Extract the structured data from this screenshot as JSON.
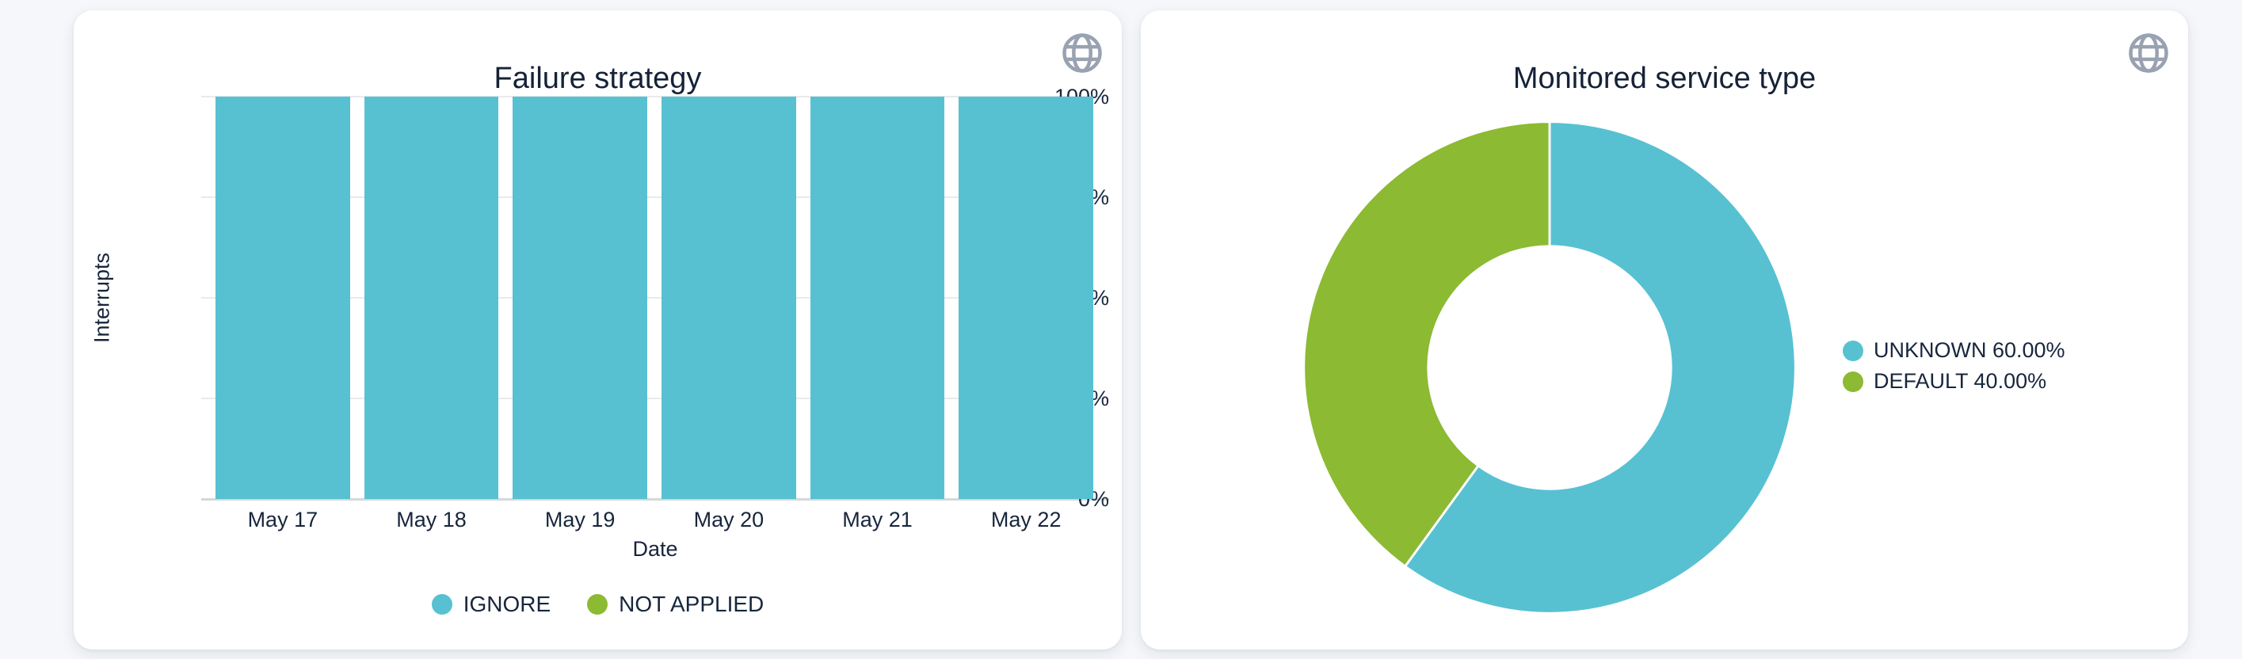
{
  "page": {
    "background_color": "#f5f7fa",
    "card_background_color": "#ffffff",
    "text_color": "#17263c"
  },
  "icons": {
    "card_action": "globe-icon",
    "globe_color": "#99a2b1"
  },
  "chart_data": [
    {
      "type": "bar",
      "title": "Failure strategy",
      "categories": [
        "May 17",
        "May 18",
        "May 19",
        "May 20",
        "May 21",
        "May 22"
      ],
      "series": [
        {
          "name": "IGNORE",
          "color": "#57c1d2",
          "values": [
            100,
            100,
            100,
            100,
            100,
            100
          ]
        },
        {
          "name": "NOT APPLIED",
          "color": "#8cba32",
          "values": [
            0,
            0,
            0,
            0,
            0,
            0
          ]
        }
      ],
      "stacked": true,
      "xlabel": "Date",
      "ylabel": "Interrupts",
      "ylim": [
        0,
        100
      ],
      "yticks": [
        {
          "value": 0,
          "label": "0%"
        },
        {
          "value": 25,
          "label": "25%"
        },
        {
          "value": 50,
          "label": "50%"
        },
        {
          "value": 75,
          "label": "75%"
        },
        {
          "value": 100,
          "label": "100%"
        }
      ],
      "grid": true,
      "legend_position": "bottom"
    },
    {
      "type": "pie",
      "title": "Monitored service type",
      "donut": true,
      "start_angle": "top",
      "direction": "clockwise",
      "slices": [
        {
          "label": "UNKNOWN",
          "value": 60.0,
          "color": "#57c1d2",
          "legend_label": "UNKNOWN 60.00%"
        },
        {
          "label": "DEFAULT",
          "value": 40.0,
          "color": "#8cba32",
          "legend_label": "DEFAULT 40.00%"
        }
      ],
      "legend_position": "right"
    }
  ]
}
